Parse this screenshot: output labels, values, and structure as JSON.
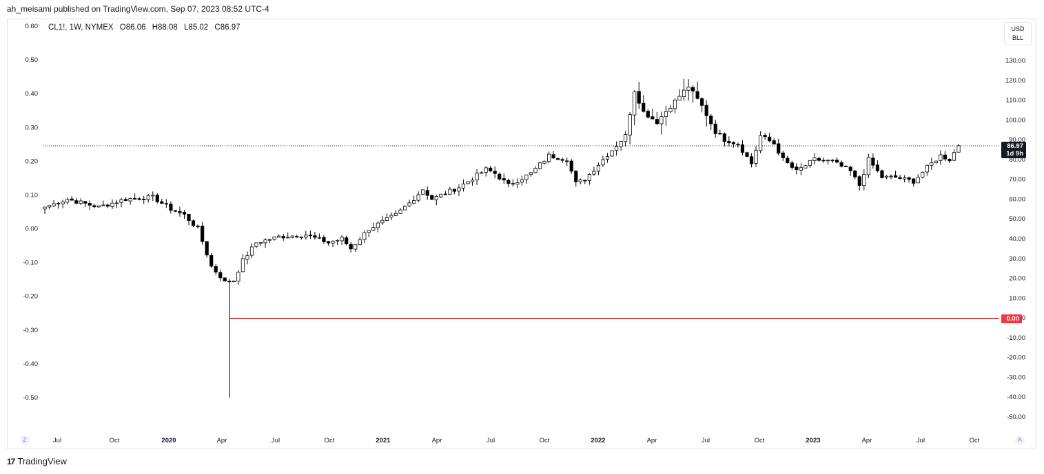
{
  "header": {
    "published_text": "ah_meisami published on TradingView.com, Sep 07, 2023 08:52 UTC-4"
  },
  "symbol": {
    "name": "CL1!, 1W, NYMEX",
    "open": "O86.06",
    "high": "H88.08",
    "low": "L85.02",
    "close": "C86.97"
  },
  "unit": {
    "line1": "USD",
    "line2": "BLL"
  },
  "price_badge": {
    "price": "86.97",
    "countdown": "1d 9h"
  },
  "zero_badge": "0.00",
  "scale_buttons": {
    "left": "Z",
    "right": "A"
  },
  "footer": {
    "brand": "TradingView",
    "logo": "17"
  },
  "colors": {
    "up_fill": "#ffffff",
    "down_fill": "#000000",
    "wick": "#000000",
    "zero_line": "#f23645",
    "badge_dark": "#131722",
    "grid_border": "#e0e3eb"
  },
  "chart_data": {
    "type": "candlestick",
    "title": "CL1!, 1W, NYMEX",
    "left_axis": {
      "ticks": [
        "0.60",
        "0.50",
        "0.40",
        "0.30",
        "0.20",
        "0.10",
        "0.00",
        "-0.10",
        "-0.20",
        "-0.30",
        "-0.40",
        "-0.50"
      ],
      "range": [
        -0.5,
        0.6
      ]
    },
    "right_axis": {
      "ticks": [
        "130.00",
        "120.00",
        "110.00",
        "100.00",
        "90.00",
        "80.00",
        "70.00",
        "60.00",
        "50.00",
        "40.00",
        "30.00",
        "20.00",
        "10.00",
        "0.00",
        "-10.00",
        "-20.00",
        "-30.00",
        "-40.00",
        "-50.00"
      ],
      "range": [
        -50,
        130
      ],
      "unit": "USD/BLL"
    },
    "x_labels": [
      "Jul",
      "Oct",
      "2020",
      "Apr",
      "Jul",
      "Oct",
      "2021",
      "Apr",
      "Jul",
      "Oct",
      "2022",
      "Apr",
      "Jul",
      "Oct",
      "2023",
      "Apr",
      "Jul",
      "Oct"
    ],
    "x_bold": [
      "2020",
      "2021",
      "2022",
      "2023"
    ],
    "last_price": 86.97,
    "horizontal_line": 0.0,
    "weekly_close_anchors": [
      {
        "week": 0,
        "close": 56
      },
      {
        "week": 5,
        "close": 60
      },
      {
        "week": 12,
        "close": 56
      },
      {
        "week": 18,
        "close": 60
      },
      {
        "week": 24,
        "close": 61
      },
      {
        "week": 28,
        "close": 55
      },
      {
        "week": 31,
        "close": 52
      },
      {
        "week": 34,
        "close": 45
      },
      {
        "week": 37,
        "close": 26
      },
      {
        "week": 39,
        "close": 21
      },
      {
        "week": 40,
        "close": 18
      },
      {
        "week": 42,
        "close": 19
      },
      {
        "week": 44,
        "close": 29
      },
      {
        "week": 47,
        "close": 38
      },
      {
        "week": 52,
        "close": 41
      },
      {
        "week": 58,
        "close": 42
      },
      {
        "week": 63,
        "close": 38
      },
      {
        "week": 66,
        "close": 40
      },
      {
        "week": 68,
        "close": 35
      },
      {
        "week": 72,
        "close": 45
      },
      {
        "week": 78,
        "close": 52
      },
      {
        "week": 81,
        "close": 58
      },
      {
        "week": 84,
        "close": 65
      },
      {
        "week": 86,
        "close": 60
      },
      {
        "week": 92,
        "close": 66
      },
      {
        "week": 98,
        "close": 75
      },
      {
        "week": 100,
        "close": 73
      },
      {
        "week": 103,
        "close": 67
      },
      {
        "week": 108,
        "close": 73
      },
      {
        "week": 112,
        "close": 82
      },
      {
        "week": 116,
        "close": 80
      },
      {
        "week": 118,
        "close": 68
      },
      {
        "week": 120,
        "close": 70
      },
      {
        "week": 124,
        "close": 80
      },
      {
        "week": 129,
        "close": 92
      },
      {
        "week": 131,
        "close": 115
      },
      {
        "week": 133,
        "close": 104
      },
      {
        "week": 136,
        "close": 99
      },
      {
        "week": 139,
        "close": 107
      },
      {
        "week": 143,
        "close": 117
      },
      {
        "week": 146,
        "close": 107
      },
      {
        "week": 149,
        "close": 94
      },
      {
        "week": 151,
        "close": 90
      },
      {
        "week": 154,
        "close": 88
      },
      {
        "week": 157,
        "close": 78
      },
      {
        "week": 159,
        "close": 92
      },
      {
        "week": 162,
        "close": 88
      },
      {
        "week": 164,
        "close": 80
      },
      {
        "week": 167,
        "close": 74
      },
      {
        "week": 171,
        "close": 80
      },
      {
        "week": 175,
        "close": 79
      },
      {
        "week": 179,
        "close": 74
      },
      {
        "week": 181,
        "close": 67
      },
      {
        "week": 183,
        "close": 80
      },
      {
        "week": 186,
        "close": 71
      },
      {
        "week": 189,
        "close": 71
      },
      {
        "week": 193,
        "close": 69
      },
      {
        "week": 196,
        "close": 76
      },
      {
        "week": 199,
        "close": 82
      },
      {
        "week": 201,
        "close": 80
      },
      {
        "week": 203,
        "close": 86.97
      }
    ]
  }
}
